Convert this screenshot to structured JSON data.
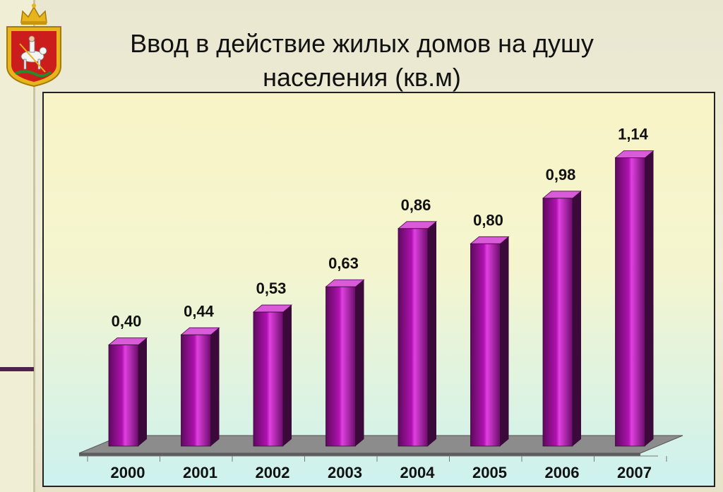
{
  "title": "Ввод в действие жилых домов на душу населения (кв.м)",
  "colors": {
    "bar_front": "#b012b0",
    "bar_top": "#d95bd9",
    "bar_side": "#3b0a3b",
    "floor": "#8c8c8c",
    "emblem_red": "#cc1d1d",
    "emblem_gold": "#e8b41c"
  },
  "emblem": {
    "name": "moscow-oblast-coat-of-arms"
  },
  "chart_data": {
    "type": "bar",
    "title": "Ввод в действие жилых домов на душу населения (кв.м)",
    "categories": [
      "2000",
      "2001",
      "2002",
      "2003",
      "2004",
      "2005",
      "2006",
      "2007"
    ],
    "values": [
      0.4,
      0.44,
      0.53,
      0.63,
      0.86,
      0.8,
      0.98,
      1.14
    ],
    "value_labels": [
      "0,40",
      "0,44",
      "0,53",
      "0,63",
      "0,86",
      "0,80",
      "0,98",
      "1,14"
    ],
    "xlabel": "",
    "ylabel": "",
    "ylim": [
      0,
      1.2
    ],
    "grid": false,
    "legend": "none",
    "style": "3d-column"
  }
}
